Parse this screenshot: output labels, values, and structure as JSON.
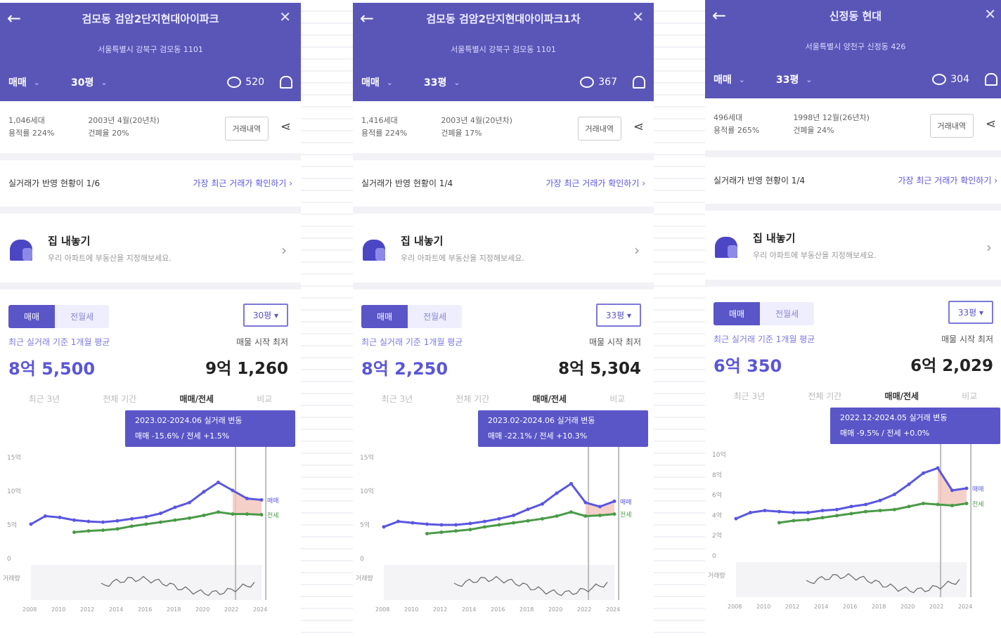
{
  "panels": [
    {
      "title": "검모동 검암2단지현대아이파크",
      "subtitle": "서울특별시 강북구 검모동 1101",
      "trade_type": "매매",
      "area": "30평",
      "comment_count": "520",
      "info_left": [
        "1,046세대",
        "용적률 224%"
      ],
      "info_right": [
        "2003년 4월(20년차)",
        "건폐율 20%"
      ],
      "info_button": "거래내역",
      "notice_left": "실거래가 반영 현황이 1/6",
      "notice_link": "가장 최근 거래가 확인하기 ›",
      "agent_title": "집 내놓기",
      "agent_desc": "우리 아파트에 부동산을 지정해보세요.",
      "toggle_on": "매매",
      "toggle_off": "전월세",
      "period": "30평 ▾",
      "left_label": "최근 실거래 기준 1개월 평균",
      "left_value": "8억 5,500",
      "right_label": "매물 시작 최저",
      "right_value": "9억 1,260",
      "tabs": [
        "최근 3년",
        "전체 기간",
        "매매/전세",
        "비교"
      ],
      "tooltip_lines": [
        "2023.02-2024.06 실거래 변동",
        "매매 -15.6% / 전세 +1.5%"
      ],
      "y_ticks": [
        "15억",
        "10억",
        "5억",
        "0"
      ],
      "y_vol": "거래량",
      "x_ticks": [
        "2008",
        "2010",
        "2012",
        "2014",
        "2016",
        "2018",
        "2020",
        "2022",
        "2024"
      ],
      "line_labels": [
        "매매",
        "전세"
      ]
    },
    {
      "title": "검모동 검암2단지현대아이파크1차",
      "subtitle": "서울특별시 강북구 검모동 1101",
      "trade_type": "매매",
      "area": "33평",
      "comment_count": "367",
      "info_left": [
        "1,416세대",
        "용적률 224%"
      ],
      "info_right": [
        "2003년 4월(20년차)",
        "건폐율 17%"
      ],
      "info_button": "거래내역",
      "notice_left": "실거래가 반영 현황이 1/4",
      "notice_link": "가장 최근 거래가 확인하기 ›",
      "agent_title": "집 내놓기",
      "agent_desc": "우리 아파트에 부동산을 지정해보세요.",
      "toggle_on": "매매",
      "toggle_off": "전월세",
      "period": "33평 ▾",
      "left_label": "최근 실거래 기준 1개월 평균",
      "left_value": "8억 2,250",
      "right_label": "매물 시작 최저",
      "right_value": "8억 5,304",
      "tabs": [
        "최근 3년",
        "전체 기간",
        "매매/전세",
        "비교"
      ],
      "tooltip_lines": [
        "2023.02-2024.06 실거래 변동",
        "매매 -22.1% / 전세 +10.3%"
      ],
      "y_ticks": [
        "15억",
        "10억",
        "5억",
        "0"
      ],
      "y_vol": "거래량",
      "x_ticks": [
        "2008",
        "2010",
        "2012",
        "2014",
        "2016",
        "2018",
        "2020",
        "2022",
        "2024"
      ],
      "line_labels": [
        "매매",
        "전세"
      ]
    },
    {
      "title": "신정동 현대",
      "subtitle": "서울특별시 양천구 신정동 426",
      "trade_type": "매매",
      "area": "33평",
      "comment_count": "304",
      "info_left": [
        "496세대",
        "용적률 265%"
      ],
      "info_right": [
        "1998년 12월(26년차)",
        "건폐율 24%"
      ],
      "info_button": "거래내역",
      "notice_left": "실거래가 반영 현황이 1/4",
      "notice_link": "가장 최근 거래가 확인하기 ›",
      "agent_title": "집 내놓기",
      "agent_desc": "우리 아파트에 부동산을 지정해보세요.",
      "toggle_on": "매매",
      "toggle_off": "전월세",
      "period": "33평 ▾",
      "left_label": "최근 실거래 기준 1개월 평균",
      "left_value": "6억 350",
      "right_label": "매물 시작 최저",
      "right_value": "6억 2,029",
      "tabs": [
        "최근 3년",
        "전체 기간",
        "매매/전세",
        "비교"
      ],
      "tooltip_lines": [
        "2022.12-2024.05 실거래 변동",
        "매매 -9.5% / 전세 +0.0%"
      ],
      "y_ticks": [
        "10억",
        "8억",
        "6억",
        "4억",
        "2억",
        "0"
      ],
      "y_vol": "거래량",
      "x_ticks": [
        "2008",
        "2010",
        "2012",
        "2014",
        "2016",
        "2018",
        "2020",
        "2022",
        "2024"
      ],
      "line_labels": [
        "매매",
        "전세"
      ]
    }
  ],
  "chart_data": [
    {
      "type": "line",
      "x": [
        2008,
        2009,
        2010,
        2011,
        2012,
        2013,
        2014,
        2015,
        2016,
        2017,
        2018,
        2019,
        2020,
        2021,
        2022,
        2023,
        2024
      ],
      "series": [
        {
          "name": "매매",
          "values": [
            5.0,
            6.2,
            6.0,
            5.6,
            5.4,
            5.3,
            5.5,
            5.8,
            6.1,
            6.6,
            7.5,
            8.2,
            9.8,
            11.2,
            10.0,
            8.8,
            8.6
          ]
        },
        {
          "name": "전세",
          "values": [
            null,
            null,
            null,
            3.8,
            4.0,
            4.1,
            4.3,
            4.7,
            5.0,
            5.3,
            5.6,
            5.9,
            6.3,
            6.8,
            6.5,
            6.5,
            6.4
          ]
        }
      ],
      "ylim": [
        0,
        15
      ]
    },
    {
      "type": "line",
      "x": [
        2008,
        2009,
        2010,
        2011,
        2012,
        2013,
        2014,
        2015,
        2016,
        2017,
        2018,
        2019,
        2020,
        2021,
        2022,
        2023,
        2024
      ],
      "series": [
        {
          "name": "매매",
          "values": [
            4.6,
            5.4,
            5.2,
            5.0,
            4.9,
            4.9,
            5.1,
            5.4,
            5.8,
            6.3,
            7.2,
            8.0,
            9.6,
            11.0,
            8.2,
            7.6,
            8.4
          ]
        },
        {
          "name": "전세",
          "values": [
            null,
            null,
            null,
            3.6,
            3.8,
            4.0,
            4.2,
            4.6,
            4.9,
            5.2,
            5.5,
            5.8,
            6.2,
            6.8,
            6.2,
            6.3,
            6.5
          ]
        }
      ],
      "ylim": [
        0,
        15
      ]
    },
    {
      "type": "line",
      "x": [
        2008,
        2009,
        2010,
        2011,
        2012,
        2013,
        2014,
        2015,
        2016,
        2017,
        2018,
        2019,
        2020,
        2021,
        2022,
        2023,
        2024
      ],
      "series": [
        {
          "name": "매매",
          "values": [
            3.6,
            4.2,
            4.4,
            4.3,
            4.2,
            4.2,
            4.4,
            4.5,
            4.8,
            5.0,
            5.4,
            6.0,
            7.0,
            8.1,
            8.6,
            6.4,
            6.6
          ]
        },
        {
          "name": "전세",
          "values": [
            null,
            null,
            null,
            3.2,
            3.4,
            3.5,
            3.7,
            3.9,
            4.1,
            4.3,
            4.4,
            4.5,
            4.8,
            5.1,
            5.0,
            4.9,
            5.1
          ]
        }
      ],
      "ylim": [
        0,
        10
      ]
    }
  ]
}
